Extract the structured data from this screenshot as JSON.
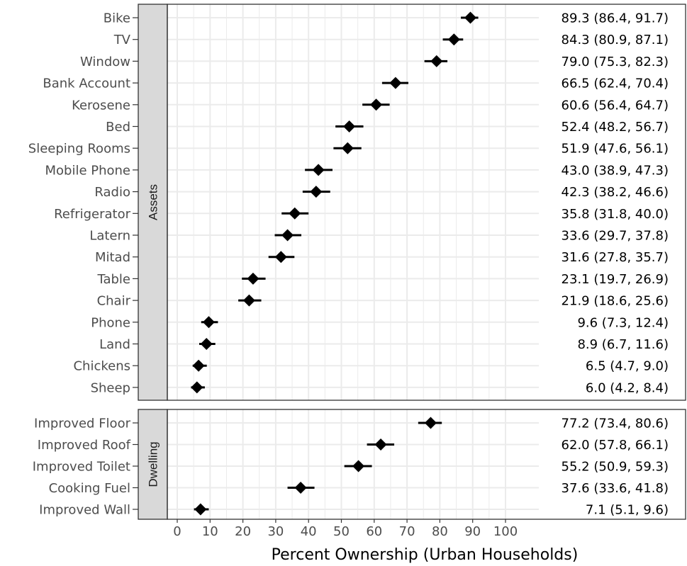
{
  "chart_data": {
    "type": "forest",
    "xlabel": "Percent Ownership (Urban Households)",
    "x_ticks": [
      0,
      10,
      20,
      30,
      40,
      50,
      60,
      70,
      80,
      90,
      100
    ],
    "grid": true,
    "point_shape": "diamond",
    "colors": {
      "point": "#000000",
      "grid": "#ebebeb",
      "strip": "#d9d9d9",
      "border": "#333333"
    },
    "panels": [
      {
        "label": "Assets",
        "rows": [
          {
            "name": "Bike",
            "estimate": 89.3,
            "lower": 86.4,
            "upper": 91.7,
            "text": "89.3 (86.4, 91.7)"
          },
          {
            "name": "TV",
            "estimate": 84.3,
            "lower": 80.9,
            "upper": 87.1,
            "text": "84.3 (80.9, 87.1)"
          },
          {
            "name": "Window",
            "estimate": 79.0,
            "lower": 75.3,
            "upper": 82.3,
            "text": "79.0 (75.3, 82.3)"
          },
          {
            "name": "Bank Account",
            "estimate": 66.5,
            "lower": 62.4,
            "upper": 70.4,
            "text": "66.5 (62.4, 70.4)"
          },
          {
            "name": "Kerosene",
            "estimate": 60.6,
            "lower": 56.4,
            "upper": 64.7,
            "text": "60.6 (56.4, 64.7)"
          },
          {
            "name": "Bed",
            "estimate": 52.4,
            "lower": 48.2,
            "upper": 56.7,
            "text": "52.4 (48.2, 56.7)"
          },
          {
            "name": "Sleeping Rooms",
            "estimate": 51.9,
            "lower": 47.6,
            "upper": 56.1,
            "text": "51.9 (47.6, 56.1)"
          },
          {
            "name": "Mobile Phone",
            "estimate": 43.0,
            "lower": 38.9,
            "upper": 47.3,
            "text": "43.0 (38.9, 47.3)"
          },
          {
            "name": "Radio",
            "estimate": 42.3,
            "lower": 38.2,
            "upper": 46.6,
            "text": "42.3 (38.2, 46.6)"
          },
          {
            "name": "Refrigerator",
            "estimate": 35.8,
            "lower": 31.8,
            "upper": 40.0,
            "text": "35.8 (31.8, 40.0)"
          },
          {
            "name": "Latern",
            "estimate": 33.6,
            "lower": 29.7,
            "upper": 37.8,
            "text": "33.6 (29.7, 37.8)"
          },
          {
            "name": "Mitad",
            "estimate": 31.6,
            "lower": 27.8,
            "upper": 35.7,
            "text": "31.6 (27.8, 35.7)"
          },
          {
            "name": "Table",
            "estimate": 23.1,
            "lower": 19.7,
            "upper": 26.9,
            "text": "23.1 (19.7, 26.9)"
          },
          {
            "name": "Chair",
            "estimate": 21.9,
            "lower": 18.6,
            "upper": 25.6,
            "text": "21.9 (18.6, 25.6)"
          },
          {
            "name": "Phone",
            "estimate": 9.6,
            "lower": 7.3,
            "upper": 12.4,
            "text": "9.6 (7.3, 12.4)"
          },
          {
            "name": "Land",
            "estimate": 8.9,
            "lower": 6.7,
            "upper": 11.6,
            "text": "8.9 (6.7, 11.6)"
          },
          {
            "name": "Chickens",
            "estimate": 6.5,
            "lower": 4.7,
            "upper": 9.0,
            "text": "6.5 (4.7, 9.0)"
          },
          {
            "name": "Sheep",
            "estimate": 6.0,
            "lower": 4.2,
            "upper": 8.4,
            "text": "6.0 (4.2, 8.4)"
          }
        ]
      },
      {
        "label": "Dwelling",
        "rows": [
          {
            "name": "Improved Floor",
            "estimate": 77.2,
            "lower": 73.4,
            "upper": 80.6,
            "text": "77.2 (73.4, 80.6)"
          },
          {
            "name": "Improved Roof",
            "estimate": 62.0,
            "lower": 57.8,
            "upper": 66.1,
            "text": "62.0 (57.8, 66.1)"
          },
          {
            "name": "Improved Toilet",
            "estimate": 55.2,
            "lower": 50.9,
            "upper": 59.3,
            "text": "55.2 (50.9, 59.3)"
          },
          {
            "name": "Cooking Fuel",
            "estimate": 37.6,
            "lower": 33.6,
            "upper": 41.8,
            "text": "37.6 (33.6, 41.8)"
          },
          {
            "name": "Improved Wall",
            "estimate": 7.1,
            "lower": 5.1,
            "upper": 9.6,
            "text": "7.1 (5.1, 9.6)"
          }
        ]
      }
    ]
  }
}
